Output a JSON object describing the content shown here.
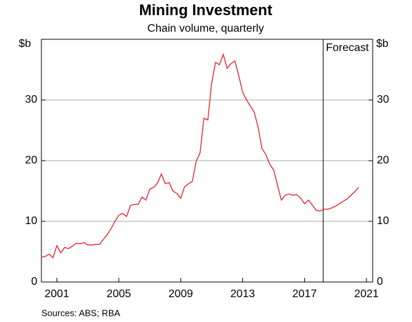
{
  "chart_data": {
    "type": "line",
    "title": "Mining Investment",
    "subtitle": "Chain volume, quarterly",
    "y_unit_left": "$b",
    "y_unit_right": "$b",
    "source": "Sources:   ABS; RBA",
    "annotation": {
      "text": "Forecast",
      "x": 2018.2
    },
    "x": [
      2000,
      2000.25,
      2000.5,
      2000.75,
      2001,
      2001.25,
      2001.5,
      2001.75,
      2002,
      2002.25,
      2002.5,
      2002.75,
      2003,
      2003.25,
      2003.5,
      2003.75,
      2004,
      2004.25,
      2004.5,
      2004.75,
      2005,
      2005.25,
      2005.5,
      2005.75,
      2006,
      2006.25,
      2006.5,
      2006.75,
      2007,
      2007.25,
      2007.5,
      2007.75,
      2008,
      2008.25,
      2008.5,
      2008.75,
      2009,
      2009.25,
      2009.5,
      2009.75,
      2010,
      2010.25,
      2010.5,
      2010.75,
      2011,
      2011.25,
      2011.5,
      2011.75,
      2012,
      2012.25,
      2012.5,
      2012.75,
      2013,
      2013.25,
      2013.5,
      2013.75,
      2014,
      2014.25,
      2014.5,
      2014.75,
      2015,
      2015.25,
      2015.5,
      2015.75,
      2016,
      2016.25,
      2016.5,
      2016.75,
      2017,
      2017.25,
      2017.5,
      2017.75,
      2018,
      2018.25,
      2018.5,
      2018.75,
      2019,
      2019.25,
      2019.5,
      2019.75,
      2020,
      2020.25,
      2020.5
    ],
    "series": [
      {
        "color": "#e8202a",
        "values": [
          4.1,
          4.2,
          4.6,
          4.0,
          6.0,
          4.8,
          5.7,
          5.5,
          5.9,
          6.4,
          6.3,
          6.5,
          6.1,
          6.1,
          6.2,
          6.2,
          7.0,
          7.8,
          8.8,
          10.0,
          11.0,
          11.3,
          10.8,
          12.6,
          12.8,
          12.8,
          14.0,
          13.5,
          15.3,
          15.6,
          16.3,
          17.8,
          16.2,
          16.4,
          15.0,
          14.6,
          13.8,
          15.7,
          16.2,
          16.6,
          19.9,
          21.3,
          27.0,
          26.7,
          32.8,
          36.2,
          35.8,
          37.5,
          35.2,
          36.0,
          36.4,
          34.0,
          31.3,
          30.0,
          29.0,
          28.0,
          25.5,
          22.0,
          21.0,
          19.4,
          18.5,
          16.0,
          13.5,
          14.3,
          14.5,
          14.3,
          14.4,
          13.8,
          12.9,
          13.5,
          12.7,
          11.8,
          11.7,
          12.0,
          12.0,
          12.2,
          12.5,
          12.9,
          13.3,
          13.7,
          14.3,
          14.9,
          15.6
        ]
      }
    ],
    "xlim": [
      2000,
      2021.4
    ],
    "xticks": [
      2001,
      2005,
      2009,
      2013,
      2017,
      2021
    ],
    "ylim": [
      0,
      40
    ],
    "yticks": [
      0,
      10,
      20,
      30
    ],
    "grid": true
  }
}
